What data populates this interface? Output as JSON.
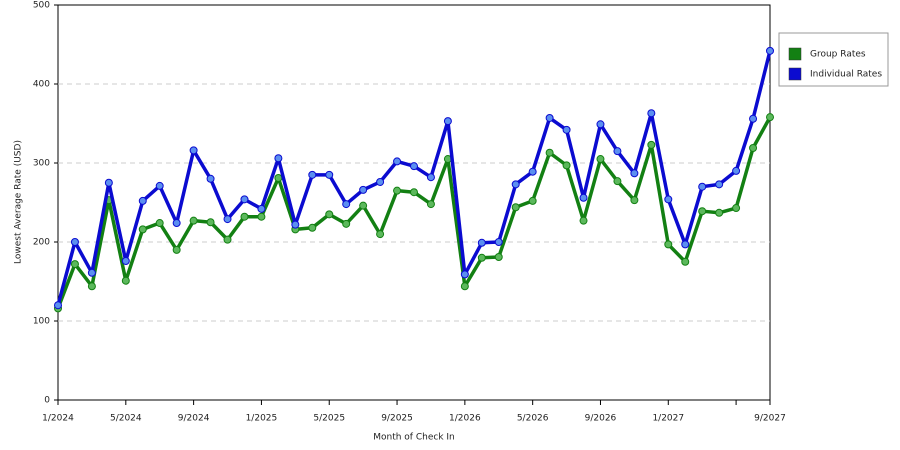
{
  "chart_data": {
    "type": "line",
    "x_label": "Month of Check In",
    "y_label": "Lowest Average Rate (USD)",
    "categories": [
      "1/2024",
      null,
      null,
      null,
      "5/2024",
      null,
      null,
      null,
      "9/2024",
      null,
      null,
      null,
      "1/2025",
      null,
      null,
      null,
      "5/2025",
      null,
      null,
      null,
      "9/2025",
      null,
      null,
      null,
      "1/2026",
      null,
      null,
      null,
      "5/2026",
      null,
      null,
      null,
      "9/2026",
      null,
      null,
      null,
      "1/2027",
      null,
      null,
      null,
      null,
      null,
      "9/2027"
    ],
    "series": [
      {
        "name": "Group Rates",
        "color": "#138013",
        "marker": "#5cb85c",
        "values": [
          116,
          172,
          144,
          253,
          151,
          216,
          224,
          190,
          227,
          225,
          203,
          232,
          232,
          281,
          216,
          218,
          235,
          223,
          246,
          210,
          265,
          263,
          248,
          305,
          144,
          180,
          181,
          244,
          252,
          313,
          297,
          227,
          305,
          277,
          253,
          323,
          197,
          175,
          239,
          237,
          243,
          319,
          358
        ]
      },
      {
        "name": "Individual Rates",
        "color": "#0b0bd0",
        "marker": "#5b8ff0",
        "values": [
          120,
          200,
          161,
          275,
          176,
          252,
          271,
          224,
          316,
          280,
          229,
          254,
          242,
          306,
          222,
          285,
          285,
          248,
          266,
          276,
          302,
          296,
          282,
          353,
          159,
          199,
          200,
          273,
          289,
          357,
          342,
          256,
          349,
          315,
          287,
          363,
          254,
          197,
          270,
          273,
          290,
          356,
          442
        ]
      }
    ],
    "ylim": [
      0,
      500
    ],
    "yticks": [
      0,
      100,
      200,
      300,
      400,
      500
    ],
    "grid": true
  }
}
